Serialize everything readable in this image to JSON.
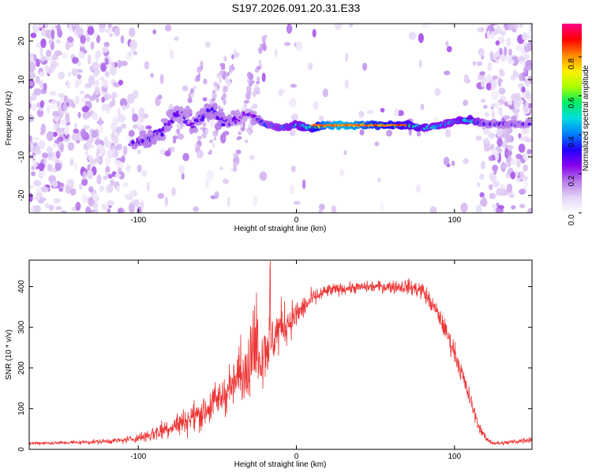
{
  "title": "S197.2026.091.20.31.E33",
  "chart_data": [
    {
      "type": "heatmap",
      "xlabel": "Height of straight line (km)",
      "ylabel": "Frequency (Hz)",
      "xlim": [
        -169,
        149
      ],
      "ylim": [
        -24.5,
        24.5
      ],
      "x_ticks": [
        -100,
        0,
        100
      ],
      "y_ticks": [
        20,
        10,
        0,
        -10,
        -20
      ],
      "colorbar": {
        "label": "Normalized spectral amplitude",
        "range": [
          0,
          0.97
        ],
        "ticks": [
          0.0,
          0.2,
          0.4,
          0.6,
          0.8
        ],
        "colors": [
          "#ffffff",
          "#e3d3f5",
          "#b57bea",
          "#8800ee",
          "#2200ff",
          "#0080ff",
          "#00dddd",
          "#00ee66",
          "#aaff00",
          "#ffee00",
          "#ff8800",
          "#ff0000",
          "#ff0088"
        ]
      },
      "ridge_segments": [
        {
          "x": -105,
          "freq": -6.5,
          "amp": 0.28
        },
        {
          "x": -95,
          "freq": -5.5,
          "amp": 0.3
        },
        {
          "x": -85,
          "freq": -3.5,
          "amp": 0.28
        },
        {
          "x": -75,
          "freq": 1.5,
          "amp": 0.26
        },
        {
          "x": -65,
          "freq": -2,
          "amp": 0.27
        },
        {
          "x": -55,
          "freq": 2,
          "amp": 0.3
        },
        {
          "x": -45,
          "freq": -1,
          "amp": 0.3
        },
        {
          "x": -30,
          "freq": 1,
          "amp": 0.22
        },
        {
          "x": -20,
          "freq": -1.5,
          "amp": 0.35
        },
        {
          "x": -10,
          "freq": -2.5,
          "amp": 0.4
        },
        {
          "x": 0,
          "freq": -1.8,
          "amp": 0.45
        },
        {
          "x": 10,
          "freq": -2.5,
          "amp": 0.55
        },
        {
          "x": 20,
          "freq": -1.8,
          "amp": 0.78
        },
        {
          "x": 30,
          "freq": -1.8,
          "amp": 0.85
        },
        {
          "x": 40,
          "freq": -1.8,
          "amp": 0.75
        },
        {
          "x": 50,
          "freq": -1.8,
          "amp": 0.65
        },
        {
          "x": 60,
          "freq": -1.8,
          "amp": 0.6
        },
        {
          "x": 70,
          "freq": -1.8,
          "amp": 0.55
        },
        {
          "x": 80,
          "freq": -2.5,
          "amp": 0.5
        },
        {
          "x": 90,
          "freq": -2,
          "amp": 0.45
        },
        {
          "x": 100,
          "freq": -0.8,
          "amp": 0.42
        },
        {
          "x": 110,
          "freq": -0.5,
          "amp": 0.5
        },
        {
          "x": 120,
          "freq": -1.5,
          "amp": 0.3
        },
        {
          "x": 135,
          "freq": -1.5,
          "amp": 0.3
        },
        {
          "x": 148,
          "freq": -1.5,
          "amp": 0.28
        }
      ]
    },
    {
      "type": "line",
      "xlabel": "Height of straight line (km)",
      "ylabel": "SNR (10 * v/v)",
      "xlim": [
        -169,
        149
      ],
      "ylim": [
        0,
        465
      ],
      "x_ticks": [
        -100,
        0,
        100
      ],
      "y_ticks": [
        0,
        100,
        200,
        300,
        400
      ],
      "series": [
        {
          "name": "SNR",
          "color": "#ee3333",
          "x": [
            -169,
            -150,
            -130,
            -110,
            -100,
            -90,
            -80,
            -70,
            -60,
            -50,
            -40,
            -30,
            -20,
            -10,
            0,
            10,
            20,
            30,
            40,
            50,
            60,
            70,
            80,
            90,
            100,
            110,
            115,
            120,
            125,
            130,
            140,
            149
          ],
          "values": [
            15,
            16,
            18,
            22,
            28,
            40,
            55,
            70,
            90,
            120,
            160,
            200,
            250,
            300,
            330,
            370,
            390,
            395,
            398,
            400,
            400,
            400,
            390,
            330,
            240,
            120,
            60,
            25,
            15,
            15,
            20,
            25
          ],
          "noise": [
            5,
            5,
            6,
            8,
            12,
            25,
            30,
            35,
            45,
            55,
            65,
            80,
            90,
            70,
            40,
            25,
            18,
            15,
            15,
            15,
            18,
            20,
            25,
            25,
            30,
            25,
            15,
            8,
            6,
            6,
            8,
            10
          ]
        }
      ]
    }
  ]
}
